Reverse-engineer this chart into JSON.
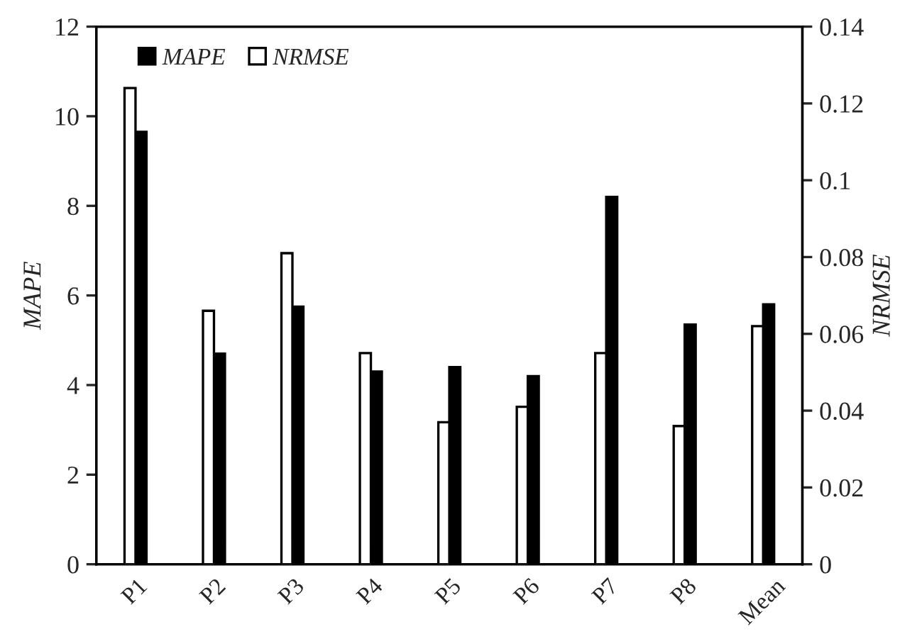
{
  "chart_data": {
    "type": "bar",
    "categories": [
      "P1",
      "P2",
      "P3",
      "P4",
      "P5",
      "P6",
      "P7",
      "P8",
      "Mean"
    ],
    "series": [
      {
        "name": "MAPE",
        "color": "#000000",
        "values": [
          9.65,
          4.7,
          5.75,
          4.3,
          4.4,
          4.2,
          8.2,
          5.35,
          5.8
        ]
      },
      {
        "name": "NRMSE",
        "color": "#ffffff",
        "axis": "y2",
        "values": [
          0.124,
          0.066,
          0.081,
          0.055,
          0.037,
          0.041,
          0.055,
          0.036,
          0.062
        ]
      }
    ],
    "ylabel": "MAPE",
    "y2label": "NRMSE",
    "ylim": [
      0,
      12
    ],
    "yticks": [
      0,
      2,
      4,
      6,
      8,
      10,
      12
    ],
    "y2lim": [
      0,
      0.14
    ],
    "y2ticks": [
      0,
      0.02,
      0.04,
      0.06,
      {
        "value": 0.08,
        "label": "0.08"
      },
      {
        "value": 0.1,
        "label": "0.1"
      },
      {
        "value": 0.12,
        "label": "0.12"
      },
      {
        "value": 0.14,
        "label": "0.14"
      }
    ],
    "legend": "top left",
    "grid": false
  }
}
